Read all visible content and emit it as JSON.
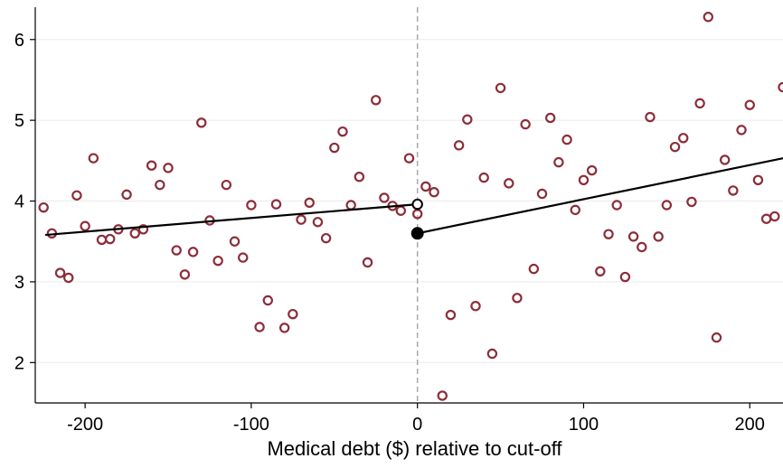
{
  "chart_data": {
    "type": "scatter",
    "title": "",
    "xlabel": "Medical debt ($) relative to cut-off",
    "ylabel": "",
    "xlim": [
      -230,
      220
    ],
    "ylim": [
      1.5,
      6.4
    ],
    "xticks": [
      -200,
      -100,
      0,
      100,
      200
    ],
    "yticks": [
      2,
      3,
      4,
      5,
      6
    ],
    "xtick_labels": [
      "-200",
      "-100",
      "0",
      "100",
      "200"
    ],
    "ytick_labels": [
      "2",
      "3",
      "4",
      "5",
      "6"
    ],
    "grid": "horizontal",
    "cutoff_x": 0,
    "points": [
      {
        "x": -225,
        "y": 3.92
      },
      {
        "x": -220,
        "y": 3.6
      },
      {
        "x": -215,
        "y": 3.11
      },
      {
        "x": -210,
        "y": 3.05
      },
      {
        "x": -205,
        "y": 4.07
      },
      {
        "x": -200,
        "y": 3.69
      },
      {
        "x": -195,
        "y": 4.53
      },
      {
        "x": -190,
        "y": 3.52
      },
      {
        "x": -185,
        "y": 3.53
      },
      {
        "x": -180,
        "y": 3.65
      },
      {
        "x": -175,
        "y": 4.08
      },
      {
        "x": -170,
        "y": 3.6
      },
      {
        "x": -165,
        "y": 3.65
      },
      {
        "x": -160,
        "y": 4.44
      },
      {
        "x": -155,
        "y": 4.2
      },
      {
        "x": -150,
        "y": 4.41
      },
      {
        "x": -145,
        "y": 3.39
      },
      {
        "x": -140,
        "y": 3.09
      },
      {
        "x": -135,
        "y": 3.37
      },
      {
        "x": -130,
        "y": 4.97
      },
      {
        "x": -125,
        "y": 3.76
      },
      {
        "x": -120,
        "y": 3.26
      },
      {
        "x": -115,
        "y": 4.2
      },
      {
        "x": -110,
        "y": 3.5
      },
      {
        "x": -105,
        "y": 3.3
      },
      {
        "x": -100,
        "y": 3.95
      },
      {
        "x": -95,
        "y": 2.44
      },
      {
        "x": -90,
        "y": 2.77
      },
      {
        "x": -85,
        "y": 3.96
      },
      {
        "x": -80,
        "y": 2.43
      },
      {
        "x": -75,
        "y": 2.6
      },
      {
        "x": -70,
        "y": 3.77
      },
      {
        "x": -65,
        "y": 3.98
      },
      {
        "x": -60,
        "y": 3.74
      },
      {
        "x": -55,
        "y": 3.54
      },
      {
        "x": -50,
        "y": 4.66
      },
      {
        "x": -45,
        "y": 4.86
      },
      {
        "x": -40,
        "y": 3.95
      },
      {
        "x": -35,
        "y": 4.3
      },
      {
        "x": -30,
        "y": 3.24
      },
      {
        "x": -25,
        "y": 5.25
      },
      {
        "x": -20,
        "y": 4.04
      },
      {
        "x": -15,
        "y": 3.94
      },
      {
        "x": -10,
        "y": 3.88
      },
      {
        "x": -5,
        "y": 4.53
      },
      {
        "x": 0,
        "y": 3.84
      },
      {
        "x": 5,
        "y": 4.18
      },
      {
        "x": 10,
        "y": 4.11
      },
      {
        "x": 15,
        "y": 1.59
      },
      {
        "x": 20,
        "y": 2.59
      },
      {
        "x": 25,
        "y": 4.69
      },
      {
        "x": 30,
        "y": 5.01
      },
      {
        "x": 35,
        "y": 2.7
      },
      {
        "x": 40,
        "y": 4.29
      },
      {
        "x": 45,
        "y": 2.11
      },
      {
        "x": 50,
        "y": 5.4
      },
      {
        "x": 55,
        "y": 4.22
      },
      {
        "x": 60,
        "y": 2.8
      },
      {
        "x": 65,
        "y": 4.95
      },
      {
        "x": 70,
        "y": 3.16
      },
      {
        "x": 75,
        "y": 4.09
      },
      {
        "x": 80,
        "y": 5.03
      },
      {
        "x": 85,
        "y": 4.48
      },
      {
        "x": 90,
        "y": 4.76
      },
      {
        "x": 95,
        "y": 3.89
      },
      {
        "x": 100,
        "y": 4.26
      },
      {
        "x": 105,
        "y": 4.38
      },
      {
        "x": 110,
        "y": 3.13
      },
      {
        "x": 115,
        "y": 3.59
      },
      {
        "x": 120,
        "y": 3.95
      },
      {
        "x": 125,
        "y": 3.06
      },
      {
        "x": 130,
        "y": 3.56
      },
      {
        "x": 135,
        "y": 3.43
      },
      {
        "x": 140,
        "y": 5.04
      },
      {
        "x": 145,
        "y": 3.56
      },
      {
        "x": 150,
        "y": 3.95
      },
      {
        "x": 155,
        "y": 4.67
      },
      {
        "x": 160,
        "y": 4.78
      },
      {
        "x": 165,
        "y": 3.99
      },
      {
        "x": 170,
        "y": 5.21
      },
      {
        "x": 175,
        "y": 6.28
      },
      {
        "x": 180,
        "y": 2.31
      },
      {
        "x": 185,
        "y": 4.51
      },
      {
        "x": 190,
        "y": 4.13
      },
      {
        "x": 195,
        "y": 4.88
      },
      {
        "x": 200,
        "y": 5.19
      },
      {
        "x": 205,
        "y": 4.26
      },
      {
        "x": 210,
        "y": 3.78
      },
      {
        "x": 215,
        "y": 3.81
      },
      {
        "x": 220,
        "y": 5.41
      }
    ],
    "fit_lines": [
      {
        "x": [
          -224,
          0
        ],
        "y": [
          3.58,
          3.96
        ]
      },
      {
        "x": [
          0,
          220
        ],
        "y": [
          3.6,
          4.53
        ]
      }
    ],
    "endpoints": [
      {
        "x": 0,
        "y": 3.96,
        "style": "open"
      },
      {
        "x": 0,
        "y": 3.6,
        "style": "filled"
      }
    ],
    "colors": {
      "points": "#8b2e3a",
      "fit": "#000000",
      "grid": "#ebebeb",
      "cutoff": "#a8a8a8"
    }
  }
}
